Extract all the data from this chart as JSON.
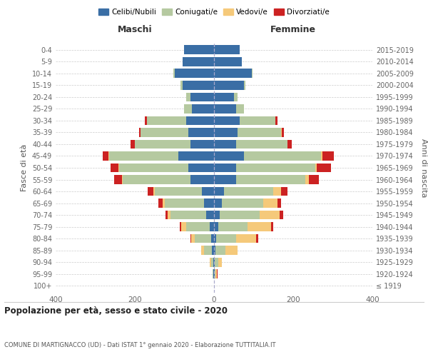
{
  "age_groups": [
    "100+",
    "95-99",
    "90-94",
    "85-89",
    "80-84",
    "75-79",
    "70-74",
    "65-69",
    "60-64",
    "55-59",
    "50-54",
    "45-49",
    "40-44",
    "35-39",
    "30-34",
    "25-29",
    "20-24",
    "15-19",
    "10-14",
    "5-9",
    "0-4"
  ],
  "birth_years": [
    "≤ 1919",
    "1920-1924",
    "1925-1929",
    "1930-1934",
    "1935-1939",
    "1940-1944",
    "1945-1949",
    "1950-1954",
    "1955-1959",
    "1960-1964",
    "1965-1969",
    "1970-1974",
    "1975-1979",
    "1980-1984",
    "1985-1989",
    "1990-1994",
    "1995-1999",
    "2000-2004",
    "2005-2009",
    "2010-2014",
    "2015-2019"
  ],
  "male": {
    "celibi": [
      0,
      1,
      2,
      5,
      8,
      10,
      20,
      25,
      30,
      60,
      65,
      90,
      60,
      65,
      70,
      55,
      60,
      80,
      100,
      80,
      75
    ],
    "coniugati": [
      0,
      2,
      5,
      20,
      40,
      60,
      90,
      100,
      120,
      170,
      175,
      175,
      140,
      120,
      100,
      20,
      10,
      5,
      2,
      0,
      0
    ],
    "vedovi": [
      0,
      0,
      3,
      8,
      10,
      12,
      8,
      5,
      3,
      3,
      2,
      1,
      0,
      0,
      0,
      0,
      0,
      0,
      0,
      0,
      0
    ],
    "divorziati": [
      0,
      0,
      0,
      0,
      2,
      5,
      5,
      10,
      15,
      20,
      20,
      15,
      10,
      5,
      5,
      0,
      0,
      0,
      0,
      0,
      0
    ]
  },
  "female": {
    "nubili": [
      0,
      1,
      2,
      4,
      6,
      10,
      15,
      20,
      25,
      55,
      55,
      75,
      55,
      60,
      65,
      55,
      50,
      75,
      95,
      70,
      65
    ],
    "coniugate": [
      0,
      3,
      8,
      25,
      50,
      75,
      100,
      105,
      125,
      175,
      200,
      195,
      130,
      110,
      90,
      20,
      10,
      5,
      2,
      0,
      0
    ],
    "vedove": [
      0,
      3,
      10,
      30,
      50,
      60,
      50,
      35,
      20,
      10,
      5,
      3,
      1,
      1,
      0,
      0,
      0,
      0,
      0,
      0,
      0
    ],
    "divorziate": [
      0,
      2,
      0,
      0,
      5,
      5,
      10,
      10,
      15,
      25,
      35,
      30,
      10,
      5,
      5,
      0,
      0,
      0,
      0,
      0,
      0
    ]
  },
  "colors": {
    "celibi": "#3a6ea5",
    "coniugati": "#b5c9a0",
    "vedovi": "#f5c97a",
    "divorziati": "#cc2222"
  },
  "title": "Popolazione per età, sesso e stato civile - 2020",
  "subtitle": "COMUNE DI MARTIGNACCO (UD) - Dati ISTAT 1° gennaio 2020 - Elaborazione TUTTITALIA.IT",
  "xlabel_left": "Maschi",
  "xlabel_right": "Femmine",
  "ylabel_left": "Fasce di età",
  "ylabel_right": "Anni di nascita",
  "xlim": 400,
  "legend_labels": [
    "Celibi/Nubili",
    "Coniugati/e",
    "Vedovi/e",
    "Divorziati/e"
  ]
}
